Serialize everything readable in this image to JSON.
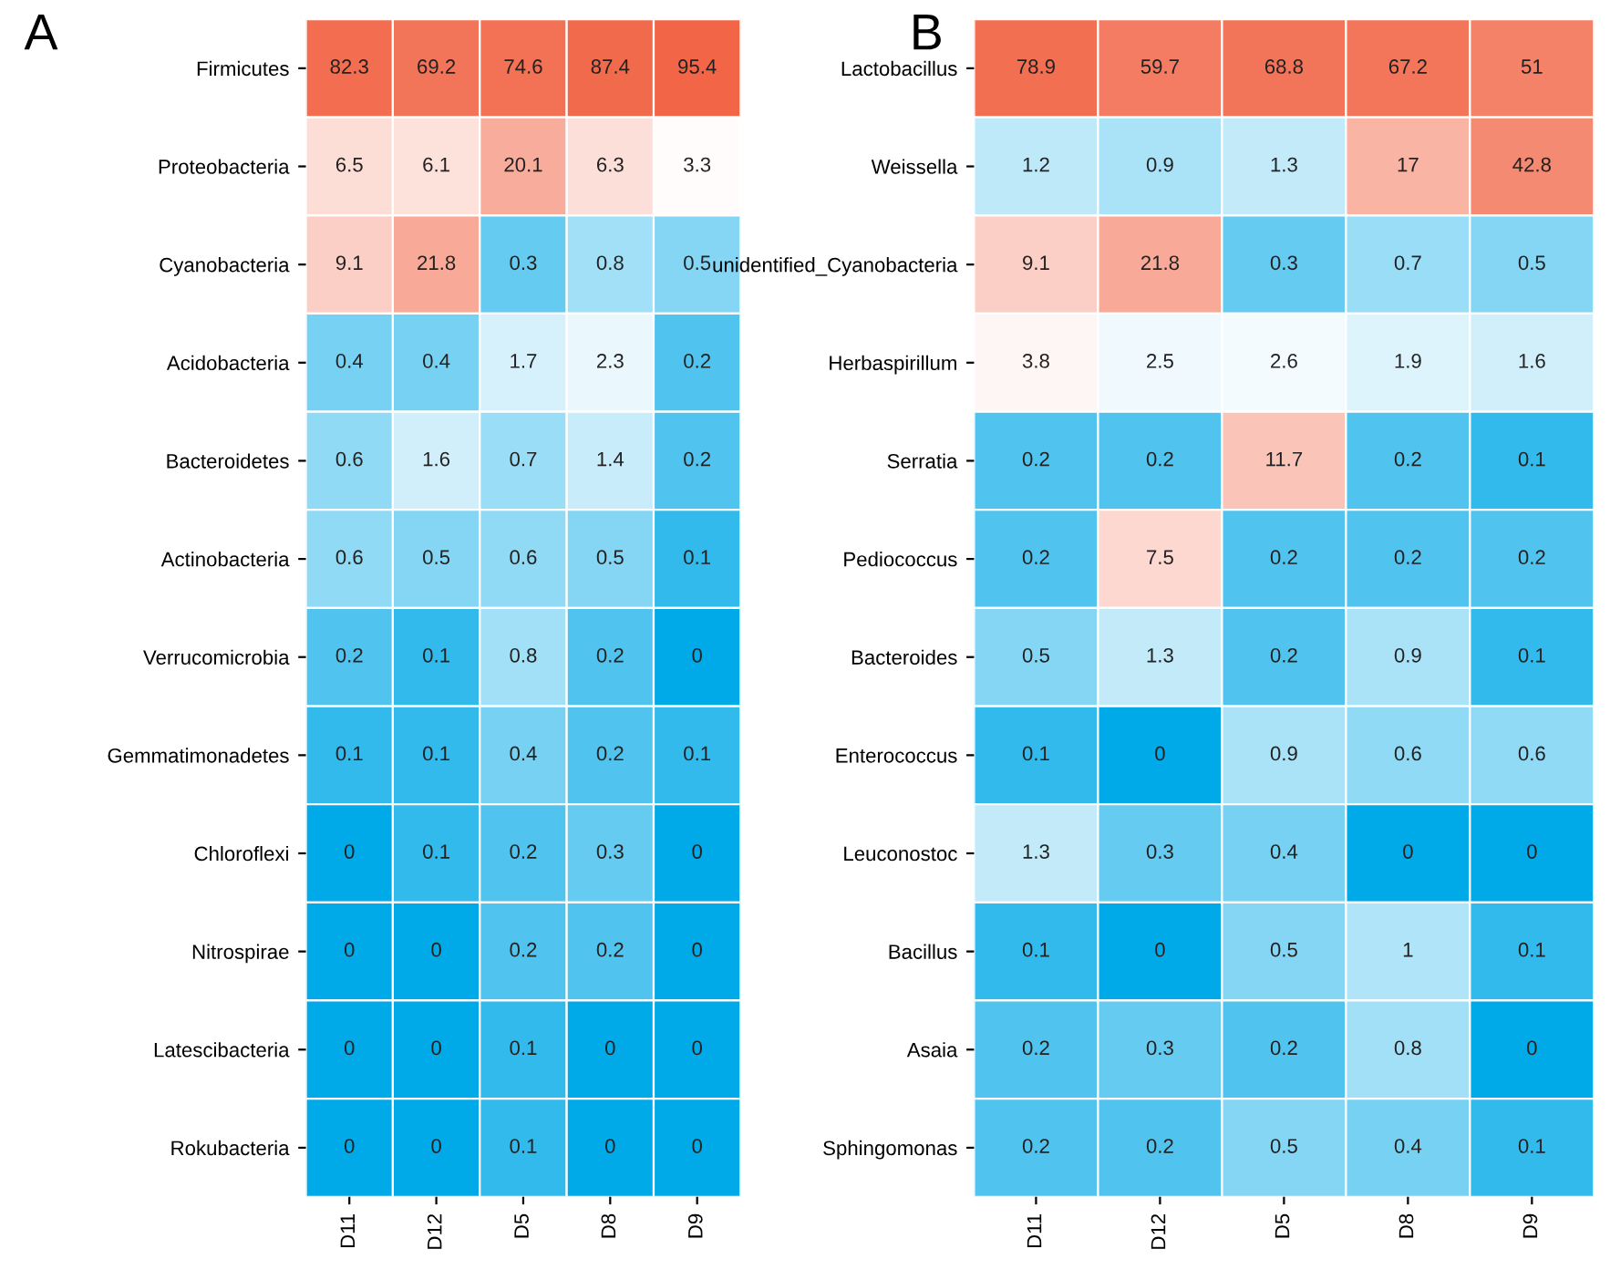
{
  "chart_data": [
    {
      "type": "heatmap",
      "title": "A",
      "categories": [
        "D11",
        "D12",
        "D5",
        "D8",
        "D9"
      ],
      "y_categories": [
        "Firmicutes",
        "Proteobacteria",
        "Cyanobacteria",
        "Acidobacteria",
        "Bacteroidetes",
        "Actinobacteria",
        "Verrucomicrobia",
        "Gemmatimonadetes",
        "Chloroflexi",
        "Nitrospirae",
        "Latescibacteria",
        "Rokubacteria"
      ],
      "cells": [
        [
          82.3,
          69.2,
          74.6,
          87.4,
          95.4
        ],
        [
          6.5,
          6.1,
          20.1,
          6.3,
          3.3
        ],
        [
          9.1,
          21.8,
          0.3,
          0.8,
          0.5
        ],
        [
          0.4,
          0.4,
          1.7,
          2.3,
          0.2
        ],
        [
          0.6,
          1.6,
          0.7,
          1.4,
          0.2
        ],
        [
          0.6,
          0.5,
          0.6,
          0.5,
          0.1
        ],
        [
          0.2,
          0.1,
          0.8,
          0.2,
          0
        ],
        [
          0.1,
          0.1,
          0.4,
          0.2,
          0.1
        ],
        [
          0,
          0.1,
          0.2,
          0.3,
          0
        ],
        [
          0,
          0,
          0.2,
          0.2,
          0
        ],
        [
          0,
          0,
          0.1,
          0,
          0
        ],
        [
          0,
          0,
          0.1,
          0,
          0
        ]
      ],
      "data_labels": true
    },
    {
      "type": "heatmap",
      "title": "B",
      "categories": [
        "D11",
        "D12",
        "D5",
        "D8",
        "D9"
      ],
      "y_categories": [
        "Lactobacillus",
        "Weissella",
        "unidentified_Cyanobacteria",
        "Herbaspirillum",
        "Serratia",
        "Pediococcus",
        "Bacteroides",
        "Enterococcus",
        "Leuconostoc",
        "Bacillus",
        "Asaia",
        "Sphingomonas"
      ],
      "cells": [
        [
          78.9,
          59.7,
          68.8,
          67.2,
          51
        ],
        [
          1.2,
          0.9,
          1.3,
          17,
          42.8
        ],
        [
          9.1,
          21.8,
          0.3,
          0.7,
          0.5
        ],
        [
          3.8,
          2.5,
          2.6,
          1.9,
          1.6
        ],
        [
          0.2,
          0.2,
          11.7,
          0.2,
          0.1
        ],
        [
          0.2,
          7.5,
          0.2,
          0.2,
          0.2
        ],
        [
          0.5,
          1.3,
          0.2,
          0.9,
          0.1
        ],
        [
          0.1,
          0,
          0.9,
          0.6,
          0.6
        ],
        [
          1.3,
          0.3,
          0.4,
          0,
          0
        ],
        [
          0.1,
          0,
          0.5,
          1,
          0.1
        ],
        [
          0.2,
          0.3,
          0.2,
          0.8,
          0
        ],
        [
          0.2,
          0.2,
          0.5,
          0.4,
          0.1
        ]
      ],
      "data_labels": true
    }
  ]
}
